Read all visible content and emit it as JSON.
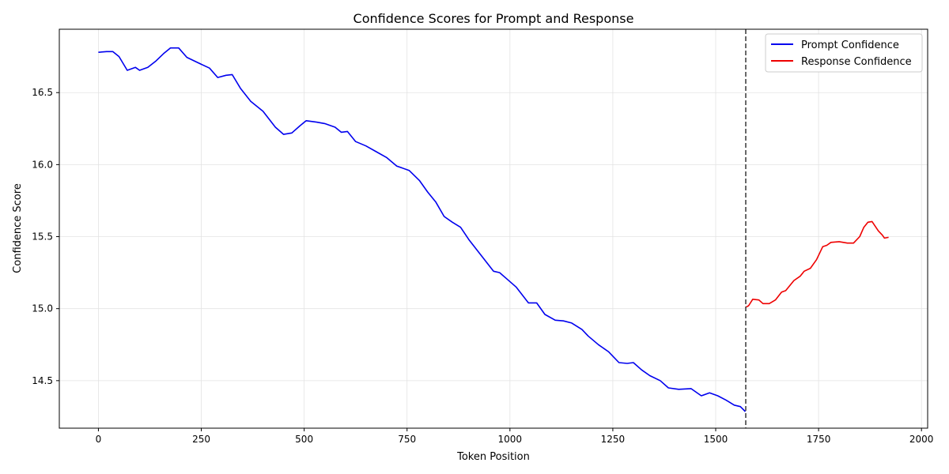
{
  "chart_data": {
    "type": "line",
    "title": "Confidence Scores for Prompt and Response",
    "xlabel": "Token Position",
    "ylabel": "Confidence Score",
    "xlim": [
      -95,
      2015
    ],
    "ylim": [
      14.17,
      16.94
    ],
    "xticks": [
      0,
      250,
      500,
      750,
      1000,
      1250,
      1500,
      1750,
      2000
    ],
    "yticks": [
      14.5,
      15.0,
      15.5,
      16.0,
      16.5
    ],
    "xtick_labels": [
      "0",
      "250",
      "500",
      "750",
      "1000",
      "1250",
      "1500",
      "1750",
      "2000"
    ],
    "ytick_labels": [
      "14.5",
      "15.0",
      "15.5",
      "16.0",
      "16.5"
    ],
    "grid": true,
    "legend_position": "top-right",
    "divider_x": 1573,
    "divider_color": "#444444",
    "series": [
      {
        "name": "Prompt Confidence",
        "color": "#0000ee",
        "points": [
          [
            0,
            16.78
          ],
          [
            20,
            16.785
          ],
          [
            35,
            16.785
          ],
          [
            50,
            16.75
          ],
          [
            70,
            16.655
          ],
          [
            90,
            16.675
          ],
          [
            100,
            16.655
          ],
          [
            120,
            16.675
          ],
          [
            140,
            16.72
          ],
          [
            160,
            16.775
          ],
          [
            175,
            16.81
          ],
          [
            195,
            16.81
          ],
          [
            215,
            16.745
          ],
          [
            240,
            16.71
          ],
          [
            270,
            16.67
          ],
          [
            290,
            16.605
          ],
          [
            310,
            16.62
          ],
          [
            325,
            16.625
          ],
          [
            345,
            16.53
          ],
          [
            370,
            16.44
          ],
          [
            400,
            16.37
          ],
          [
            430,
            16.26
          ],
          [
            450,
            16.21
          ],
          [
            470,
            16.22
          ],
          [
            490,
            16.27
          ],
          [
            505,
            16.305
          ],
          [
            530,
            16.295
          ],
          [
            550,
            16.285
          ],
          [
            575,
            16.26
          ],
          [
            590,
            16.225
          ],
          [
            605,
            16.23
          ],
          [
            625,
            16.16
          ],
          [
            650,
            16.13
          ],
          [
            675,
            16.09
          ],
          [
            700,
            16.05
          ],
          [
            725,
            15.99
          ],
          [
            755,
            15.96
          ],
          [
            780,
            15.89
          ],
          [
            800,
            15.81
          ],
          [
            820,
            15.74
          ],
          [
            840,
            15.64
          ],
          [
            860,
            15.6
          ],
          [
            880,
            15.565
          ],
          [
            900,
            15.48
          ],
          [
            930,
            15.37
          ],
          [
            960,
            15.26
          ],
          [
            975,
            15.25
          ],
          [
            995,
            15.2
          ],
          [
            1015,
            15.15
          ],
          [
            1045,
            15.04
          ],
          [
            1065,
            15.04
          ],
          [
            1085,
            14.96
          ],
          [
            1110,
            14.92
          ],
          [
            1130,
            14.915
          ],
          [
            1150,
            14.9
          ],
          [
            1175,
            14.855
          ],
          [
            1190,
            14.81
          ],
          [
            1215,
            14.75
          ],
          [
            1240,
            14.7
          ],
          [
            1265,
            14.625
          ],
          [
            1285,
            14.62
          ],
          [
            1300,
            14.625
          ],
          [
            1320,
            14.575
          ],
          [
            1340,
            14.535
          ],
          [
            1365,
            14.5
          ],
          [
            1385,
            14.45
          ],
          [
            1410,
            14.44
          ],
          [
            1440,
            14.445
          ],
          [
            1465,
            14.395
          ],
          [
            1485,
            14.415
          ],
          [
            1505,
            14.395
          ],
          [
            1525,
            14.365
          ],
          [
            1545,
            14.33
          ],
          [
            1560,
            14.32
          ],
          [
            1572,
            14.285
          ]
        ]
      },
      {
        "name": "Response Confidence",
        "color": "#ee0000",
        "points": [
          [
            1573,
            15.01
          ],
          [
            1580,
            15.02
          ],
          [
            1590,
            15.065
          ],
          [
            1605,
            15.06
          ],
          [
            1615,
            15.035
          ],
          [
            1630,
            15.035
          ],
          [
            1645,
            15.06
          ],
          [
            1660,
            15.115
          ],
          [
            1670,
            15.125
          ],
          [
            1690,
            15.195
          ],
          [
            1705,
            15.225
          ],
          [
            1715,
            15.26
          ],
          [
            1730,
            15.28
          ],
          [
            1745,
            15.34
          ],
          [
            1760,
            15.43
          ],
          [
            1770,
            15.44
          ],
          [
            1780,
            15.46
          ],
          [
            1800,
            15.465
          ],
          [
            1820,
            15.455
          ],
          [
            1835,
            15.455
          ],
          [
            1850,
            15.5
          ],
          [
            1860,
            15.565
          ],
          [
            1870,
            15.6
          ],
          [
            1880,
            15.605
          ],
          [
            1895,
            15.54
          ],
          [
            1905,
            15.51
          ],
          [
            1910,
            15.49
          ],
          [
            1920,
            15.495
          ]
        ]
      }
    ]
  }
}
